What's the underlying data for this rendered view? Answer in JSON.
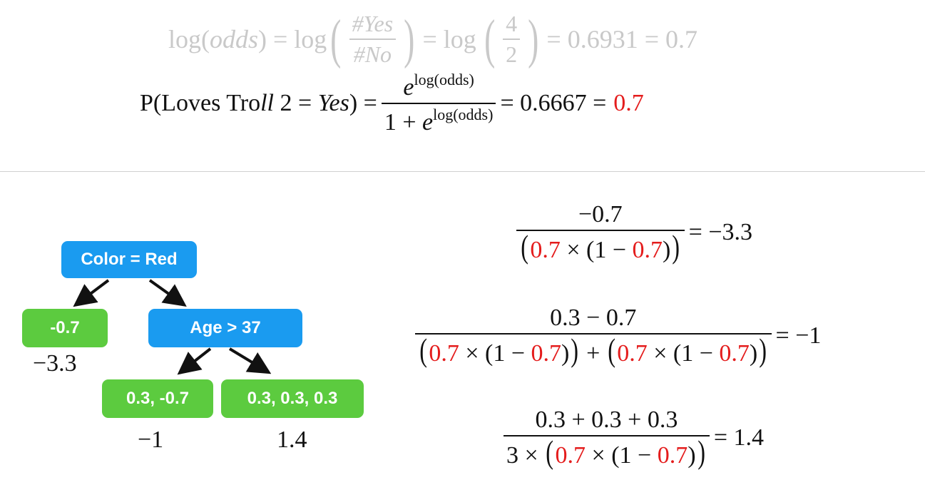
{
  "top_equation_log_odds": {
    "lhs": "log(odds) = log",
    "num": "#Yes",
    "den": "#No",
    "mid": "= log",
    "num2": "4",
    "den2": "2",
    "rhs": "= 0.6931 = 0.7"
  },
  "top_equation_probability": {
    "lhs_prefix": "P(Loves Tro",
    "lhs_ll": "ll",
    "lhs_mid": " 2 = ",
    "lhs_yes": "Yes",
    "lhs_close": ") =",
    "num_base": "e",
    "num_exp": "log(odds)",
    "den_prefix": "1 + ",
    "den_base": "e",
    "den_exp": "log(odds)",
    "rhs": "= 0.6667 =",
    "rhs_red": "0.7"
  },
  "tree": {
    "root": "Color = Red",
    "left_leaf": "-0.7",
    "right_node": "Age > 37",
    "leaf_a": "0.3, -0.7",
    "leaf_b": "0.3, 0.3, 0.3",
    "output_left": "−3.3",
    "output_a": "−1",
    "output_b": "1.4"
  },
  "right_equations": {
    "eq1_num": "−0.7",
    "eq1_result": "= −3.3",
    "eq2_num": "0.3 − 0.7",
    "eq2_result": "= −1",
    "eq3_num": "0.3 + 0.3 + 0.3",
    "eq3_den_prefix": "3 ×",
    "eq3_result": "= 1.4",
    "prev_prob": "0.7",
    "times": "×",
    "one_minus": "(1 −",
    "close": ")",
    "plus": "+"
  },
  "colors": {
    "blue_node": "#1a9bf0",
    "green_leaf": "#5ccb3f",
    "highlight_red": "#e41c1c",
    "faded_gray": "#c9c9c9"
  }
}
